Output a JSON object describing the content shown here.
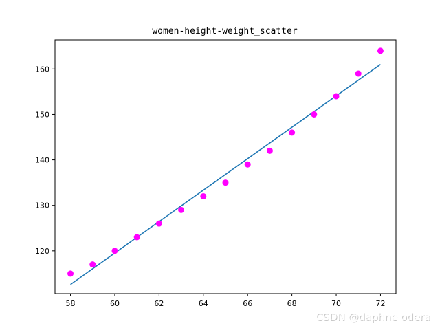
{
  "watermark": "CSDN @daphne odera\u0001",
  "chart_data": {
    "type": "scatter",
    "title": "women-height-weight_scatter",
    "xlabel": "",
    "ylabel": "",
    "xlim": [
      57.3,
      72.7
    ],
    "ylim": [
      110.6,
      166.4
    ],
    "xticks": [
      58,
      60,
      62,
      64,
      66,
      68,
      70,
      72
    ],
    "yticks": [
      120,
      130,
      140,
      150,
      160
    ],
    "grid": false,
    "legend": "none",
    "series": [
      {
        "kind": "scatter",
        "color": "#ff00ff",
        "x": [
          58,
          59,
          60,
          61,
          62,
          63,
          64,
          65,
          66,
          67,
          68,
          69,
          70,
          71,
          72
        ],
        "y": [
          115,
          117,
          120,
          123,
          126,
          129,
          132,
          135,
          139,
          142,
          146,
          150,
          154,
          159,
          164
        ]
      },
      {
        "kind": "line",
        "color": "#1f77b4",
        "x": [
          58,
          72
        ],
        "y": [
          112.6,
          161.0
        ]
      }
    ]
  }
}
